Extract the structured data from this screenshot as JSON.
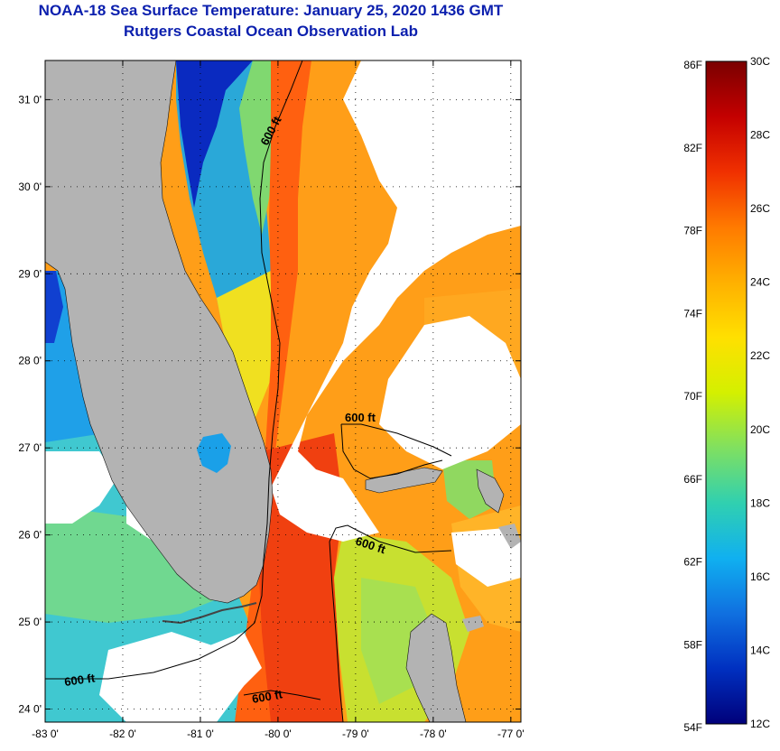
{
  "title": {
    "line1": "NOAA-18 Sea Surface Temperature:  January 25, 2020 1436 GMT",
    "line2": "Rutgers Coastal Ocean Observation Lab"
  },
  "map": {
    "lon_range": [
      -83.0,
      -76.87
    ],
    "lat_range": [
      23.85,
      31.45
    ],
    "lon_ticks": [
      {
        "value": -83,
        "label": "-83 0'"
      },
      {
        "value": -82,
        "label": "-82 0'"
      },
      {
        "value": -81,
        "label": "-81 0'"
      },
      {
        "value": -80,
        "label": "-80 0'"
      },
      {
        "value": -79,
        "label": "-79 0'"
      },
      {
        "value": -78,
        "label": "-78 0'"
      },
      {
        "value": -77,
        "label": "-77 0'"
      }
    ],
    "lat_ticks": [
      {
        "value": 31,
        "label": "31 0'"
      },
      {
        "value": 30,
        "label": "30 0'"
      },
      {
        "value": 29,
        "label": "29 0'"
      },
      {
        "value": 28,
        "label": "28 0'"
      },
      {
        "value": 27,
        "label": "27 0'"
      },
      {
        "value": 26,
        "label": "26 0'"
      },
      {
        "value": 25,
        "label": "25 0'"
      },
      {
        "value": 24,
        "label": "24 0'"
      }
    ],
    "contour_labels": [
      "600 ft",
      "600 ft",
      "600 ft",
      "600 ft",
      "600 ft"
    ],
    "colors": {
      "land": "#b3b3b3",
      "cloud": "#ffffff",
      "contour": "#000000"
    }
  },
  "colorbar": {
    "fahrenheit_labels": [
      "86F",
      "82F",
      "78F",
      "74F",
      "70F",
      "66F",
      "62F",
      "58F",
      "54F"
    ],
    "celsius_labels": [
      "30C",
      "28C",
      "26C",
      "24C",
      "22C",
      "20C",
      "18C",
      "16C",
      "14C",
      "12C"
    ],
    "gradient": [
      "#7a0000",
      "#c40000",
      "#f03000",
      "#ff7a00",
      "#ffb000",
      "#ffe000",
      "#d4f000",
      "#80e060",
      "#30d0b0",
      "#10b0f0",
      "#1070e0",
      "#0030c0",
      "#00007a"
    ]
  }
}
